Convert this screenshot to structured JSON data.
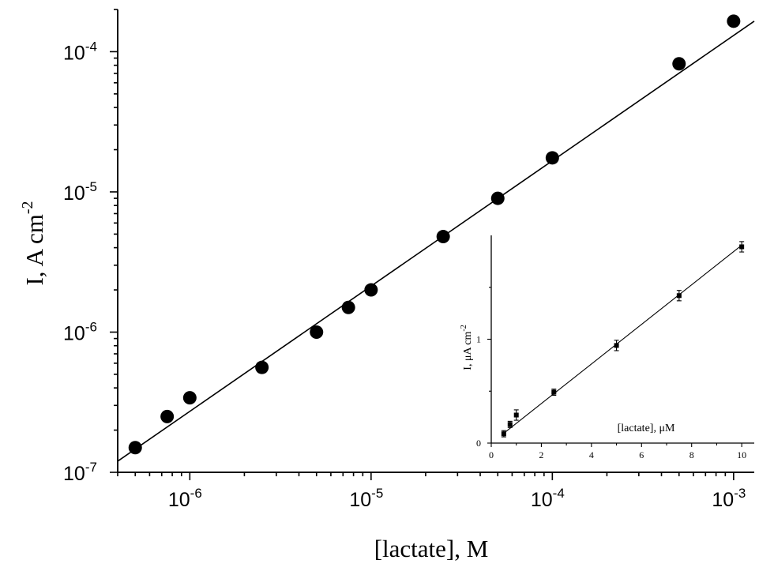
{
  "chart_data": [
    {
      "type": "scatter",
      "scale": {
        "x": "log",
        "y": "log"
      },
      "xlabel": "[lactate], M",
      "ylabel_main": "I, A cm",
      "ylabel_sup": "-2",
      "xlim": [
        4e-07,
        0.0013
      ],
      "ylim": [
        1e-07,
        0.0002
      ],
      "x_ticks": [
        {
          "value": 1e-06,
          "base": "10",
          "exp": "-6"
        },
        {
          "value": 1e-05,
          "base": "10",
          "exp": "-5"
        },
        {
          "value": 0.0001,
          "base": "10",
          "exp": "-4"
        },
        {
          "value": 0.001,
          "base": "10",
          "exp": "-3"
        }
      ],
      "y_ticks": [
        {
          "value": 1e-07,
          "base": "10",
          "exp": "-7"
        },
        {
          "value": 1e-06,
          "base": "10",
          "exp": "-6"
        },
        {
          "value": 1e-05,
          "base": "10",
          "exp": "-5"
        },
        {
          "value": 0.0001,
          "base": "10",
          "exp": "-4"
        }
      ],
      "series": [
        {
          "marker": "circle",
          "x": [
            5e-07,
            7.5e-07,
            1e-06,
            2.5e-06,
            5e-06,
            7.5e-06,
            1e-05,
            2.5e-05,
            5e-05,
            0.0001,
            0.0005,
            0.001
          ],
          "y": [
            1.5e-07,
            2.5e-07,
            3.4e-07,
            5.6e-07,
            1e-06,
            1.5e-06,
            2e-06,
            4.8e-06,
            9e-06,
            1.75e-05,
            8.2e-05,
            0.000165
          ]
        }
      ],
      "fit_line": {
        "x": [
          4e-07,
          0.0013
        ],
        "y": [
          1.2e-07,
          0.000165
        ]
      },
      "grid": false
    },
    {
      "type": "scatter",
      "xlabel": "[lactate], μM",
      "ylabel_main": "I, μA cm",
      "ylabel_sup": "-2",
      "xlim": [
        0,
        10.5
      ],
      "ylim": [
        0,
        2
      ],
      "x_ticks": [
        "0",
        "2",
        "4",
        "6",
        "8",
        "10"
      ],
      "y_ticks": [
        "0",
        "1"
      ],
      "series": [
        {
          "marker": "square",
          "error_bars": true,
          "x": [
            0.5,
            0.75,
            1.0,
            2.5,
            5.0,
            7.5,
            10.0
          ],
          "y": [
            0.09,
            0.18,
            0.27,
            0.49,
            0.94,
            1.42,
            1.89
          ],
          "err": [
            0.03,
            0.03,
            0.05,
            0.03,
            0.05,
            0.05,
            0.05
          ]
        }
      ],
      "fit_line": {
        "x": [
          0.5,
          10.0
        ],
        "y": [
          0.095,
          1.905
        ]
      },
      "grid": false
    }
  ]
}
